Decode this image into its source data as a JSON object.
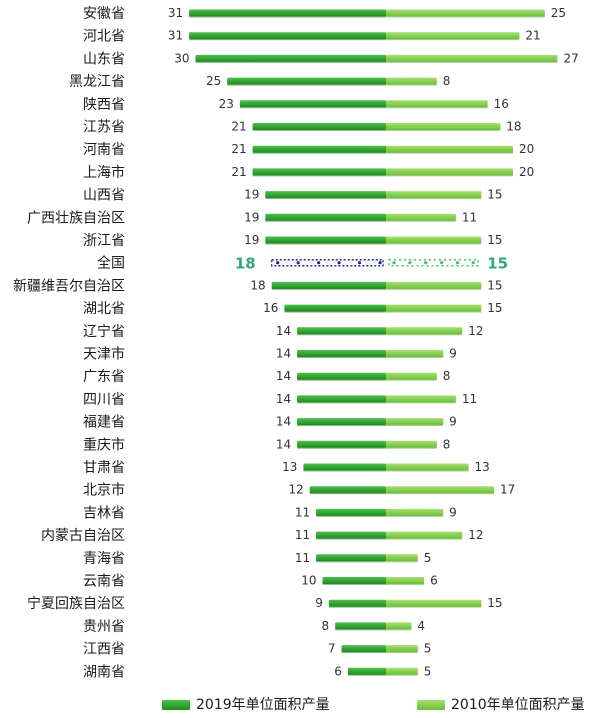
{
  "chart_data": {
    "type": "bar",
    "orientation": "horizontal-butterfly",
    "categories": [
      "安徽省",
      "河北省",
      "山东省",
      "黑龙江省",
      "陕西省",
      "江苏省",
      "河南省",
      "上海市",
      "山西省",
      "广西壮族自治区",
      "浙江省",
      "全国",
      "新疆维吾尔自治区",
      "湖北省",
      "辽宁省",
      "天津市",
      "广东省",
      "四川省",
      "福建省",
      "重庆市",
      "甘肃省",
      "北京市",
      "吉林省",
      "内蒙古自治区",
      "青海省",
      "云南省",
      "宁夏回族自治区",
      "贵州省",
      "江西省",
      "湖南省"
    ],
    "highlight_category": "全国",
    "series": [
      {
        "name": "2019年单位面积产量",
        "side": "left",
        "color": "#2fa52f",
        "values": [
          31,
          31,
          30,
          25,
          23,
          21,
          21,
          21,
          19,
          19,
          19,
          18,
          18,
          16,
          14,
          14,
          14,
          14,
          14,
          14,
          13,
          12,
          11,
          11,
          11,
          10,
          9,
          8,
          7,
          6
        ]
      },
      {
        "name": "2010年单位面积产量",
        "side": "right",
        "color": "#86cf4e",
        "values": [
          25,
          21,
          27,
          8,
          16,
          18,
          20,
          20,
          15,
          11,
          15,
          15,
          15,
          15,
          12,
          9,
          8,
          11,
          9,
          8,
          13,
          17,
          9,
          12,
          5,
          6,
          15,
          4,
          5,
          5
        ]
      }
    ],
    "legend": "bottom",
    "grid": false
  }
}
